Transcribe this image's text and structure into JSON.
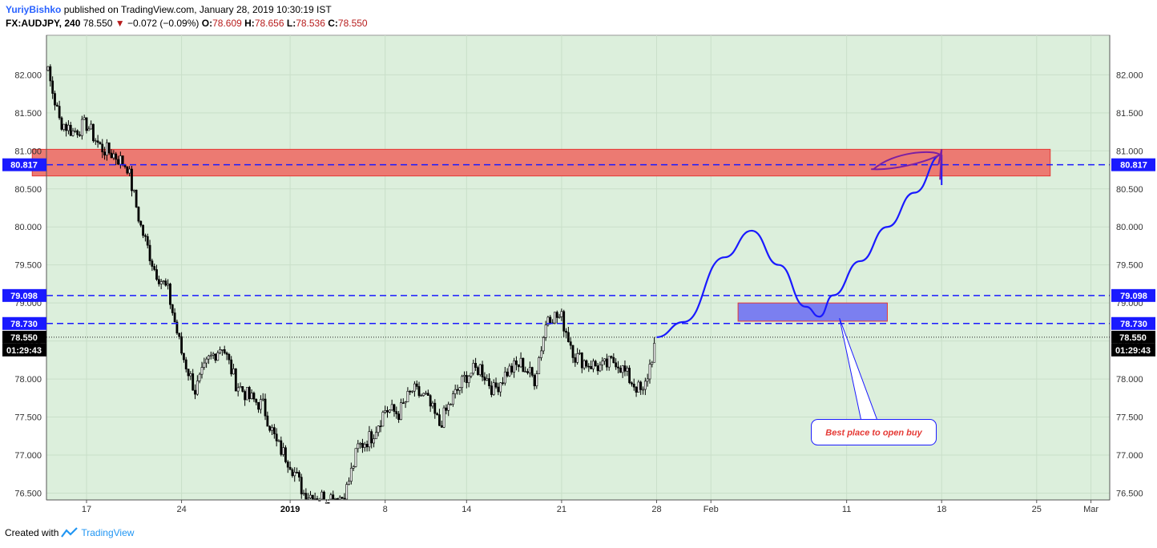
{
  "header": {
    "author": "YuriyBishko",
    "published": "published on TradingView.com, January 28, 2019 10:30:19 IST",
    "symbol": "FX:AUDJPY, 240",
    "last": "78.550",
    "change_arrow": "▼",
    "change": "−0.072 (−0.09%)",
    "open_label": "O:",
    "open": "78.609",
    "high_label": "H:",
    "high": "78.656",
    "low_label": "L:",
    "low": "78.536",
    "close_label": "C:",
    "close": "78.550"
  },
  "footer": {
    "created_with": "Created with",
    "brand": "TradingView"
  },
  "colors": {
    "chart_bg": "#dcefdc",
    "resistance_zone": "#ec7a72",
    "buy_zone": "#7b7ff0",
    "level_line": "#1a1aff",
    "projection": "#1a1aff",
    "scribble": "#7b1fa2",
    "callout_text": "#e53935"
  },
  "chart_data": {
    "type": "candlestick",
    "y_ticks": [
      "82.000",
      "81.500",
      "81.000",
      "80.500",
      "80.000",
      "79.500",
      "79.000",
      "78.500",
      "78.000",
      "77.500",
      "77.000",
      "76.500"
    ],
    "y_tick_values": [
      82.0,
      81.5,
      81.0,
      80.5,
      80.0,
      79.5,
      79.0,
      78.5,
      78.0,
      77.5,
      77.0,
      76.5
    ],
    "ylim": [
      76.41,
      82.52
    ],
    "x_ticks": [
      {
        "label": "17",
        "date": "2018-12-17"
      },
      {
        "label": "24",
        "date": "2018-12-24"
      },
      {
        "label": "2019",
        "date": "2019-01-01",
        "bold": true
      },
      {
        "label": "8",
        "date": "2019-01-08"
      },
      {
        "label": "14",
        "date": "2019-01-14"
      },
      {
        "label": "21",
        "date": "2019-01-21"
      },
      {
        "label": "28",
        "date": "2019-01-28"
      },
      {
        "label": "Feb",
        "date": "2019-02-01"
      },
      {
        "label": "11",
        "date": "2019-02-11"
      },
      {
        "label": "18",
        "date": "2019-02-18"
      },
      {
        "label": "25",
        "date": "2019-02-25"
      },
      {
        "label": "Mar",
        "date": "2019-03-01"
      }
    ],
    "price_path": [
      [
        "2018-12-13",
        81.85
      ],
      [
        "2018-12-14",
        82.15
      ],
      [
        "2018-12-15",
        81.4
      ],
      [
        "2018-12-16",
        81.25
      ],
      [
        "2018-12-17",
        81.35
      ],
      [
        "2018-12-18",
        81.05
      ],
      [
        "2018-12-19",
        80.95
      ],
      [
        "2018-12-20",
        80.8
      ],
      [
        "2018-12-21",
        80.0
      ],
      [
        "2018-12-22",
        79.45
      ],
      [
        "2018-12-23",
        79.15
      ],
      [
        "2018-12-24",
        78.35
      ],
      [
        "2018-12-25",
        77.85
      ],
      [
        "2018-12-26",
        78.25
      ],
      [
        "2018-12-27",
        78.45
      ],
      [
        "2018-12-28",
        77.95
      ],
      [
        "2018-12-29",
        77.75
      ],
      [
        "2018-12-30",
        77.65
      ],
      [
        "2018-12-31",
        77.15
      ],
      [
        "2019-01-01",
        76.9
      ],
      [
        "2019-01-02",
        76.5
      ],
      [
        "2019-01-03",
        76.45
      ],
      [
        "2019-01-05",
        76.45
      ],
      [
        "2019-01-06",
        77.1
      ],
      [
        "2019-01-07",
        77.25
      ],
      [
        "2019-01-08",
        77.6
      ],
      [
        "2019-01-09",
        77.55
      ],
      [
        "2019-01-10",
        77.85
      ],
      [
        "2019-01-11",
        77.75
      ],
      [
        "2019-01-12",
        77.4
      ],
      [
        "2019-01-13",
        77.75
      ],
      [
        "2019-01-14",
        78.05
      ],
      [
        "2019-01-15",
        78.15
      ],
      [
        "2019-01-16",
        77.85
      ],
      [
        "2019-01-17",
        78.1
      ],
      [
        "2019-01-18",
        78.2
      ],
      [
        "2019-01-19",
        78.0
      ],
      [
        "2019-01-20",
        78.85
      ],
      [
        "2019-01-21",
        78.8
      ],
      [
        "2019-01-22",
        78.3
      ],
      [
        "2019-01-23",
        78.2
      ],
      [
        "2019-01-24",
        78.15
      ],
      [
        "2019-01-25",
        78.25
      ],
      [
        "2019-01-26",
        78.0
      ],
      [
        "2019-01-27",
        77.8
      ],
      [
        "2019-01-28",
        78.55
      ]
    ],
    "levels": [
      {
        "label": "80.817",
        "value": 80.817
      },
      {
        "label": "79.098",
        "value": 79.098
      },
      {
        "label": "78.730",
        "value": 78.73
      }
    ],
    "last_price": {
      "label": "78.550",
      "value": 78.55,
      "countdown": "01:29:43"
    },
    "zones": [
      {
        "name": "resistance",
        "start": "2018-12-13",
        "end": "2019-02-26",
        "low": 80.67,
        "high": 81.02
      },
      {
        "name": "buy",
        "start": "2019-02-03",
        "end": "2019-02-14",
        "low": 78.76,
        "high": 79.0
      }
    ],
    "projection": [
      [
        "2019-01-28",
        78.55
      ],
      [
        "2019-01-30",
        78.75
      ],
      [
        "2019-02-02",
        79.6
      ],
      [
        "2019-02-04",
        79.95
      ],
      [
        "2019-02-06",
        79.5
      ],
      [
        "2019-02-08",
        78.95
      ],
      [
        "2019-02-09",
        78.82
      ],
      [
        "2019-02-10",
        79.1
      ],
      [
        "2019-02-12",
        79.55
      ],
      [
        "2019-02-14",
        80.0
      ],
      [
        "2019-02-16",
        80.45
      ],
      [
        "2019-02-18",
        80.95
      ]
    ],
    "annotation": {
      "text": "Best place to open buy",
      "date": "2019-02-13",
      "value": 77.3,
      "points_to": [
        "2019-02-10",
        78.8
      ]
    }
  }
}
